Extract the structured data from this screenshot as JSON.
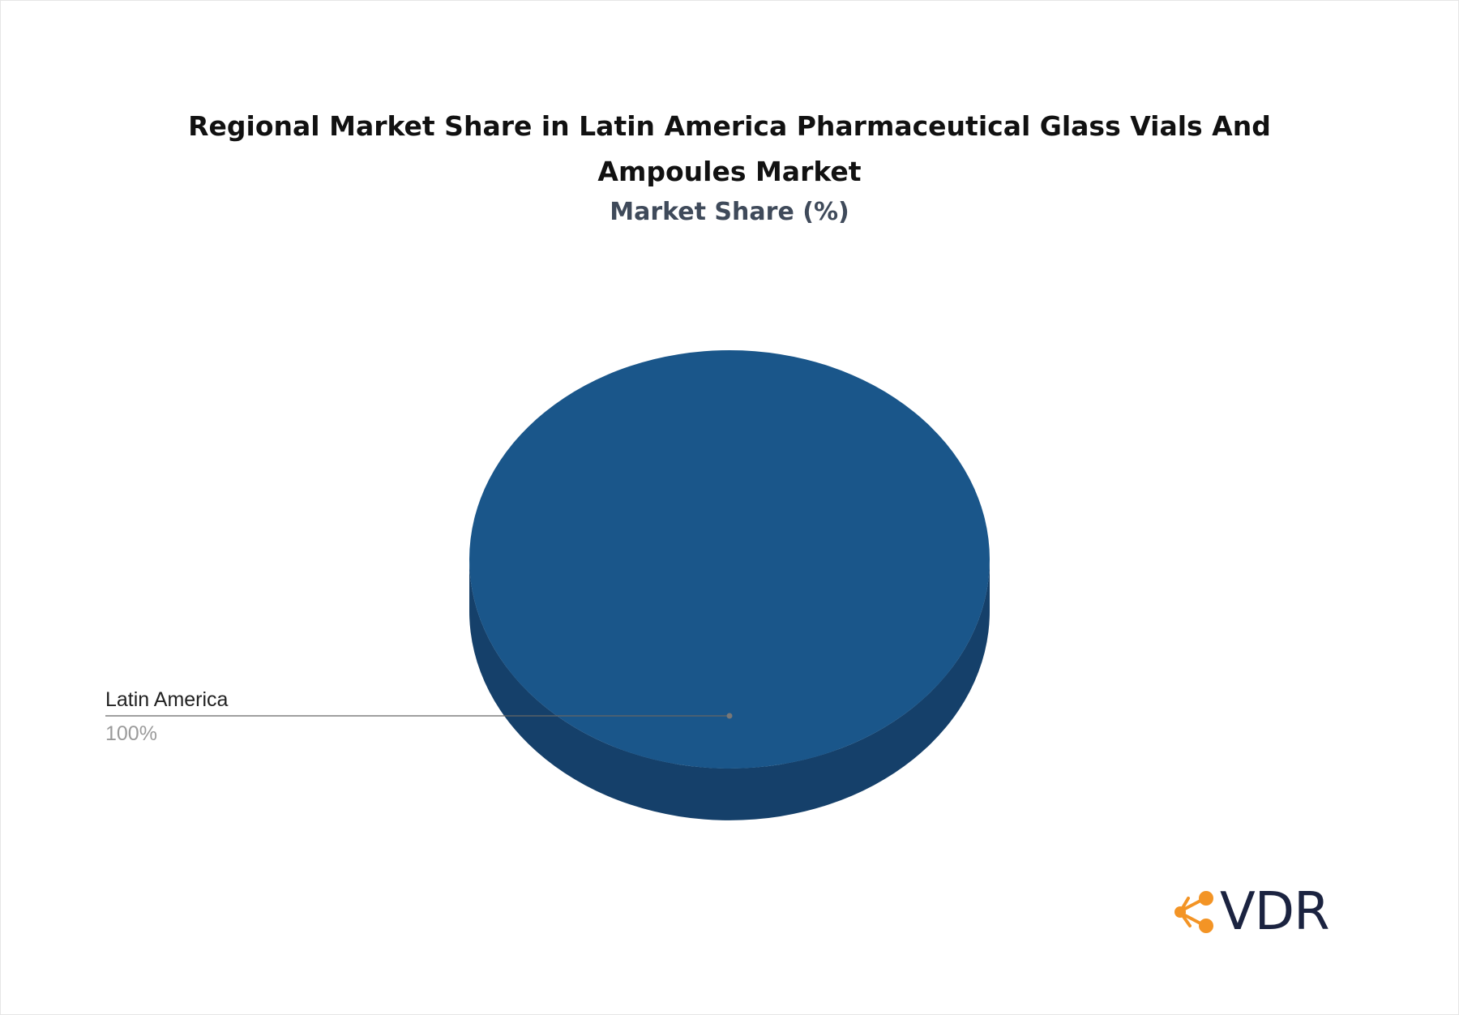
{
  "chart_data": {
    "type": "pie",
    "title": "Regional Market Share in Latin America Pharmaceutical Glass Vials And Ampoules Market",
    "subtitle": "Market Share (%)",
    "slices": [
      {
        "label": "Latin America",
        "value": 100,
        "value_label": "100%",
        "color": "#1a568a",
        "side_color": "#15406a"
      }
    ]
  },
  "brand": {
    "text": "VDR",
    "icon": "share-nodes-icon",
    "icon_color": "#f39425",
    "text_color": "#1b2340"
  }
}
